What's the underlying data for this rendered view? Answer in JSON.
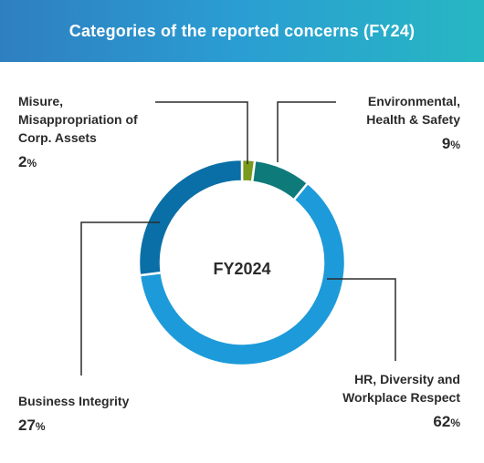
{
  "header": {
    "title": "Categories of the reported concerns (FY24)"
  },
  "colors": {
    "misuse": "#7a9a1e",
    "ehs": "#0f7a7a",
    "hr": "#1d9ad9",
    "business": "#0a6fa6",
    "header_start": "#2f7fc0",
    "header_end": "#27b7c3",
    "leader_line": "#2b2b2b"
  },
  "chart_data": {
    "type": "pie",
    "donut": true,
    "title": "Categories of the reported concerns (FY24)",
    "center_label": "FY2024",
    "slices": [
      {
        "key": "misuse",
        "label": "Misure, Misappropriation of Corp. Assets",
        "label_lines": [
          "Misure,",
          "Misappropriation of",
          "Corp. Assets"
        ],
        "value": 2,
        "value_text": "2",
        "unit": "%"
      },
      {
        "key": "ehs",
        "label": "Environmental, Health & Safety",
        "label_lines": [
          "Environmental,",
          "Health & Safety"
        ],
        "value": 9,
        "value_text": "9",
        "unit": "%"
      },
      {
        "key": "hr",
        "label": "HR, Diversity and Workplace Respect",
        "label_lines": [
          "HR, Diversity and",
          "Workplace Respect"
        ],
        "value": 62,
        "value_text": "62",
        "unit": "%"
      },
      {
        "key": "business",
        "label": "Business Integrity",
        "label_lines": [
          "Business Integrity"
        ],
        "value": 27,
        "value_text": "27",
        "unit": "%"
      }
    ]
  }
}
